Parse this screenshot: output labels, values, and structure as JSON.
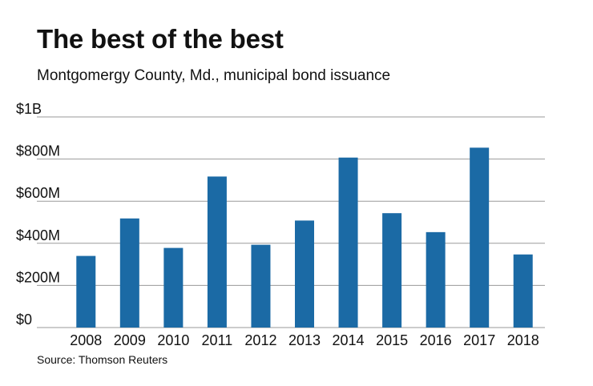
{
  "chart_data": {
    "type": "bar",
    "title": "The best of the best",
    "subtitle": "Montgomergy County, Md., municipal bond issuance",
    "source": "Source: Thomson Reuters",
    "xlabel": "",
    "ylabel": "",
    "categories": [
      "2008",
      "2009",
      "2010",
      "2011",
      "2012",
      "2013",
      "2014",
      "2015",
      "2016",
      "2017",
      "2018"
    ],
    "series": [
      {
        "name": "Municipal bond issuance",
        "values": [
          340,
          518,
          378,
          717,
          393,
          508,
          807,
          543,
          453,
          854,
          347
        ]
      }
    ],
    "unit": "millions of dollars",
    "ylim": [
      0,
      1000
    ],
    "yticks": [
      0,
      200,
      400,
      600,
      800,
      1000
    ],
    "ytick_labels": [
      "$0",
      "$200M",
      "$400M",
      "$600M",
      "$800M",
      "$1B"
    ],
    "grid": true,
    "legend": "none",
    "bar_color": "#1b6aa5",
    "grid_color": "#9a9a9a"
  }
}
